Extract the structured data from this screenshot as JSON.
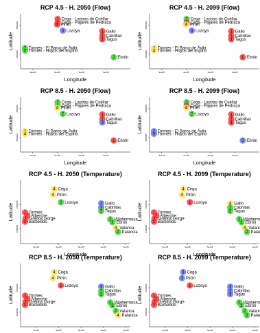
{
  "colors": {
    "1": "#ff3b3b",
    "2": "#41d632",
    "3": "#6b7cf0",
    "4": "#ffe255"
  },
  "chart_data": [
    {
      "type": "scatter",
      "title": "RCP 4.5 - H. 2050 (Flow)",
      "xlabel": "Longitude",
      "ylabel": "Latitude",
      "xticks": [
        "3e+05",
        "4e+05",
        "5e+05",
        "6e+05"
      ],
      "yticks": [
        "4450000",
        "4550000"
      ],
      "xlim": [
        250000,
        700000
      ],
      "ylim": [
        4400000,
        4590000
      ],
      "points": [
        {
          "label": "Cega - Lastras de Cuéllar",
          "x": 402000,
          "y": 4572000,
          "cluster": "1"
        },
        {
          "label": "Cega - Pajares de Pedraza",
          "x": 402000,
          "y": 4560000,
          "cluster": "1"
        },
        {
          "label": "Pirón",
          "x": 400000,
          "y": 4553000,
          "cluster": "1"
        },
        {
          "label": "Lozoya",
          "x": 423000,
          "y": 4532000,
          "cluster": "3"
        },
        {
          "label": "Gallo",
          "x": 585000,
          "y": 4530000,
          "cluster": "1"
        },
        {
          "label": "Cabrillas",
          "x": 585000,
          "y": 4514000,
          "cluster": "1"
        },
        {
          "label": "Tagus",
          "x": 585000,
          "y": 4502000,
          "cluster": "1"
        },
        {
          "label": "Tormes - El Barco de Ávila",
          "x": 268000,
          "y": 4472000,
          "cluster": "2"
        },
        {
          "label": "Tormes - Hoyos del Espino",
          "x": 268000,
          "y": 4463000,
          "cluster": "2"
        },
        {
          "label": "Ebrón",
          "x": 632000,
          "y": 4440000,
          "cluster": "2"
        }
      ]
    },
    {
      "type": "scatter",
      "title": "RCP 4.5 - H. 2099 (Flow)",
      "xlabel": "Longitude",
      "ylabel": "Latitude",
      "xticks": [
        "3e+05",
        "4e+05",
        "5e+05",
        "6e+05"
      ],
      "yticks": [
        "4450000",
        "4550000"
      ],
      "xlim": [
        250000,
        700000
      ],
      "ylim": [
        4400000,
        4590000
      ],
      "points": [
        {
          "label": "Cega - Lastras de Cuéllar",
          "x": 402000,
          "y": 4572000,
          "cluster": "2"
        },
        {
          "label": "Cega - Pajares de Pedraza",
          "x": 402000,
          "y": 4560000,
          "cluster": "1"
        },
        {
          "label": "Pirón",
          "x": 400000,
          "y": 4553000,
          "cluster": "4"
        },
        {
          "label": "Lozoya",
          "x": 423000,
          "y": 4532000,
          "cluster": "3"
        },
        {
          "label": "Gallo",
          "x": 585000,
          "y": 4530000,
          "cluster": "1"
        },
        {
          "label": "Cabrillas",
          "x": 585000,
          "y": 4514000,
          "cluster": "1"
        },
        {
          "label": "Tagus",
          "x": 585000,
          "y": 4502000,
          "cluster": "1"
        },
        {
          "label": "Tormes - El Barco de Ávila",
          "x": 268000,
          "y": 4472000,
          "cluster": "4"
        },
        {
          "label": "Tormes - Hoyos del Espino",
          "x": 268000,
          "y": 4463000,
          "cluster": "4"
        },
        {
          "label": "Ebrón",
          "x": 632000,
          "y": 4440000,
          "cluster": "1"
        }
      ]
    },
    {
      "type": "scatter",
      "title": "RCP 8.5 - H. 2050 (Flow)",
      "xlabel": "Longitude",
      "ylabel": "Latitude",
      "xticks": [
        "3e+05",
        "4e+05",
        "5e+05",
        "6e+05"
      ],
      "yticks": [
        "4450000",
        "4550000"
      ],
      "xlim": [
        250000,
        700000
      ],
      "ylim": [
        4400000,
        4590000
      ],
      "points": [
        {
          "label": "Cega - Lastras de Cuéllar",
          "x": 402000,
          "y": 4572000,
          "cluster": "2"
        },
        {
          "label": "Cega - Pajares de Pedraza",
          "x": 402000,
          "y": 4560000,
          "cluster": "2"
        },
        {
          "label": "Pirón",
          "x": 400000,
          "y": 4553000,
          "cluster": "4"
        },
        {
          "label": "Lozoya",
          "x": 423000,
          "y": 4532000,
          "cluster": "2"
        },
        {
          "label": "Gallo",
          "x": 585000,
          "y": 4530000,
          "cluster": "1"
        },
        {
          "label": "Cabrillas",
          "x": 585000,
          "y": 4514000,
          "cluster": "1"
        },
        {
          "label": "Tagus",
          "x": 585000,
          "y": 4502000,
          "cluster": "3"
        },
        {
          "label": "Tormes - El Barco de Ávila",
          "x": 268000,
          "y": 4472000,
          "cluster": "4"
        },
        {
          "label": "Tormes - Hoyos del Espino",
          "x": 268000,
          "y": 4463000,
          "cluster": "4"
        },
        {
          "label": "Ebrón",
          "x": 632000,
          "y": 4440000,
          "cluster": "1"
        }
      ]
    },
    {
      "type": "scatter",
      "title": "RCP 8.5 - H. 2099 (Flow)",
      "xlabel": "Longitude",
      "ylabel": "Latitude",
      "xticks": [
        "3e+05",
        "4e+05",
        "5e+05",
        "6e+05"
      ],
      "yticks": [
        "4450000",
        "4550000"
      ],
      "xlim": [
        250000,
        700000
      ],
      "ylim": [
        4400000,
        4590000
      ],
      "points": [
        {
          "label": "Cega - Lastras de Cuéllar",
          "x": 402000,
          "y": 4572000,
          "cluster": "2"
        },
        {
          "label": "Cega - Pajares de Pedraza",
          "x": 402000,
          "y": 4560000,
          "cluster": "1"
        },
        {
          "label": "Pirón",
          "x": 400000,
          "y": 4553000,
          "cluster": "4"
        },
        {
          "label": "Lozoya",
          "x": 423000,
          "y": 4532000,
          "cluster": "2"
        },
        {
          "label": "Gallo",
          "x": 585000,
          "y": 4530000,
          "cluster": "1"
        },
        {
          "label": "Cabrillas",
          "x": 585000,
          "y": 4514000,
          "cluster": "1"
        },
        {
          "label": "Tagus",
          "x": 585000,
          "y": 4502000,
          "cluster": "1"
        },
        {
          "label": "Tormes - El Barco de Ávila",
          "x": 268000,
          "y": 4472000,
          "cluster": "3"
        },
        {
          "label": "Tormes - Hoyos del Espino",
          "x": 268000,
          "y": 4463000,
          "cluster": "3"
        },
        {
          "label": "Ebrón",
          "x": 632000,
          "y": 4440000,
          "cluster": "3"
        }
      ]
    },
    {
      "type": "scatter",
      "title": "RCP 4.5 - H. 2050 (Temperature)",
      "xlabel": "Longitude",
      "ylabel": "Latitude",
      "xticks": [
        "3e+05",
        "4e+05",
        "5e+05",
        "6e+05",
        "7e+05"
      ],
      "yticks": [
        "4400000",
        "4500000"
      ],
      "xlim": [
        230000,
        720000
      ],
      "ylim": [
        4340000,
        4600000
      ],
      "points": [
        {
          "label": "Cega",
          "x": 380000,
          "y": 4565000,
          "cluster": "4"
        },
        {
          "label": "Pirón",
          "x": 375000,
          "y": 4540000,
          "cluster": "4"
        },
        {
          "label": "Lozoya",
          "x": 410000,
          "y": 4510000,
          "cluster": "2"
        },
        {
          "label": "Gallo",
          "x": 590000,
          "y": 4505000,
          "cluster": "3"
        },
        {
          "label": "Cabrillas",
          "x": 590000,
          "y": 4488000,
          "cluster": "3"
        },
        {
          "label": "Tagus",
          "x": 590000,
          "y": 4474000,
          "cluster": "2"
        },
        {
          "label": "Tormes",
          "x": 250000,
          "y": 4468000,
          "cluster": "1"
        },
        {
          "label": "Alberche",
          "x": 260000,
          "y": 4455000,
          "cluster": "1"
        },
        {
          "label": "Gredos Gorge",
          "x": 252000,
          "y": 4443000,
          "cluster": "1"
        },
        {
          "label": "Barbellido",
          "x": 250000,
          "y": 4430000,
          "cluster": "1"
        },
        {
          "label": "Villahermosa",
          "x": 630000,
          "y": 4440000,
          "cluster": "2"
        },
        {
          "label": "Ebrón",
          "x": 640000,
          "y": 4428000,
          "cluster": "2"
        },
        {
          "label": "Valanca",
          "x": 655000,
          "y": 4405000,
          "cluster": "4"
        },
        {
          "label": "Palancia",
          "x": 665000,
          "y": 4388000,
          "cluster": "2"
        }
      ]
    },
    {
      "type": "scatter",
      "title": "RCP 4.5 - H. 2099 (Temperature)",
      "xlabel": "Longitude",
      "ylabel": "Latitude",
      "xticks": [
        "3e+05",
        "4e+05",
        "5e+05",
        "6e+05",
        "7e+05"
      ],
      "yticks": [
        "4400000",
        "4500000"
      ],
      "xlim": [
        230000,
        720000
      ],
      "ylim": [
        4340000,
        4600000
      ],
      "points": [
        {
          "label": "Cega",
          "x": 380000,
          "y": 4565000,
          "cluster": "4"
        },
        {
          "label": "Pirón",
          "x": 375000,
          "y": 4540000,
          "cluster": "4"
        },
        {
          "label": "Lozoya",
          "x": 410000,
          "y": 4510000,
          "cluster": "1"
        },
        {
          "label": "Gallo",
          "x": 590000,
          "y": 4505000,
          "cluster": "4"
        },
        {
          "label": "Cabrillas",
          "x": 590000,
          "y": 4488000,
          "cluster": "2"
        },
        {
          "label": "Tagus",
          "x": 590000,
          "y": 4474000,
          "cluster": "2"
        },
        {
          "label": "Tormes",
          "x": 250000,
          "y": 4468000,
          "cluster": "1"
        },
        {
          "label": "Alberche",
          "x": 260000,
          "y": 4455000,
          "cluster": "1"
        },
        {
          "label": "Gredos Gorge",
          "x": 252000,
          "y": 4443000,
          "cluster": "1"
        },
        {
          "label": "Barbellido",
          "x": 250000,
          "y": 4430000,
          "cluster": "1"
        },
        {
          "label": "Villahermosa",
          "x": 630000,
          "y": 4440000,
          "cluster": "2"
        },
        {
          "label": "Ebrón",
          "x": 640000,
          "y": 4428000,
          "cluster": "2"
        },
        {
          "label": "Valanca",
          "x": 655000,
          "y": 4405000,
          "cluster": "4"
        },
        {
          "label": "Palancia",
          "x": 665000,
          "y": 4388000,
          "cluster": "2"
        }
      ]
    },
    {
      "type": "scatter",
      "title": "RCP 8.5 - H. 2050 (Temperature)",
      "xlabel": "Longitude",
      "ylabel": "Latitude",
      "xticks": [
        "3e+05",
        "4e+05",
        "5e+05",
        "6e+05",
        "7e+05"
      ],
      "yticks": [
        "4400000",
        "4500000"
      ],
      "xlim": [
        230000,
        720000
      ],
      "ylim": [
        4340000,
        4600000
      ],
      "points": [
        {
          "label": "Cega",
          "x": 380000,
          "y": 4565000,
          "cluster": "4"
        },
        {
          "label": "Pirón",
          "x": 375000,
          "y": 4540000,
          "cluster": "4"
        },
        {
          "label": "Lozoya",
          "x": 410000,
          "y": 4510000,
          "cluster": "1"
        },
        {
          "label": "Gallo",
          "x": 590000,
          "y": 4505000,
          "cluster": "3"
        },
        {
          "label": "Cabrillas",
          "x": 590000,
          "y": 4488000,
          "cluster": "2"
        },
        {
          "label": "Tagus",
          "x": 590000,
          "y": 4474000,
          "cluster": "2"
        },
        {
          "label": "Tormes",
          "x": 250000,
          "y": 4468000,
          "cluster": "1"
        },
        {
          "label": "Alberche",
          "x": 260000,
          "y": 4455000,
          "cluster": "1"
        },
        {
          "label": "Gredos Gorge",
          "x": 252000,
          "y": 4443000,
          "cluster": "1"
        },
        {
          "label": "Barbellido",
          "x": 250000,
          "y": 4430000,
          "cluster": "1"
        },
        {
          "label": "Villahermosa",
          "x": 630000,
          "y": 4440000,
          "cluster": "2"
        },
        {
          "label": "Ebrón",
          "x": 640000,
          "y": 4428000,
          "cluster": "2"
        },
        {
          "label": "Valanca",
          "x": 655000,
          "y": 4405000,
          "cluster": "2"
        },
        {
          "label": "Palancia",
          "x": 665000,
          "y": 4388000,
          "cluster": "4"
        }
      ]
    },
    {
      "type": "scatter",
      "title": "RCP 8.5 - H. 2099 (Temperature)",
      "xlabel": "Longitude",
      "ylabel": "Latitude",
      "xticks": [
        "3e+05",
        "4e+05",
        "5e+05",
        "6e+05",
        "7e+05"
      ],
      "yticks": [
        "4400000",
        "4500000"
      ],
      "xlim": [
        230000,
        720000
      ],
      "ylim": [
        4340000,
        4600000
      ],
      "points": [
        {
          "label": "Cega",
          "x": 380000,
          "y": 4565000,
          "cluster": "3"
        },
        {
          "label": "Pirón",
          "x": 375000,
          "y": 4540000,
          "cluster": "3"
        },
        {
          "label": "Lozoya",
          "x": 410000,
          "y": 4510000,
          "cluster": "1"
        },
        {
          "label": "Gallo",
          "x": 590000,
          "y": 4505000,
          "cluster": "3"
        },
        {
          "label": "Cabrillas",
          "x": 590000,
          "y": 4488000,
          "cluster": "3"
        },
        {
          "label": "Tagus",
          "x": 590000,
          "y": 4474000,
          "cluster": "3"
        },
        {
          "label": "Tormes",
          "x": 250000,
          "y": 4468000,
          "cluster": "1"
        },
        {
          "label": "Alberche",
          "x": 260000,
          "y": 4455000,
          "cluster": "1"
        },
        {
          "label": "Gredos Gorge",
          "x": 252000,
          "y": 4443000,
          "cluster": "1"
        },
        {
          "label": "Barbellido",
          "x": 250000,
          "y": 4430000,
          "cluster": "1"
        },
        {
          "label": "Villahermosa",
          "x": 630000,
          "y": 4440000,
          "cluster": "2"
        },
        {
          "label": "Ebrón",
          "x": 640000,
          "y": 4428000,
          "cluster": "2"
        },
        {
          "label": "Valanca",
          "x": 655000,
          "y": 4405000,
          "cluster": "2"
        },
        {
          "label": "Palancia",
          "x": 665000,
          "y": 4388000,
          "cluster": "2"
        }
      ]
    }
  ]
}
